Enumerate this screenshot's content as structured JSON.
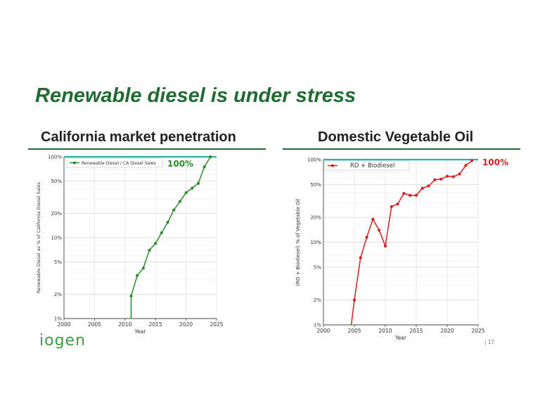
{
  "slide": {
    "title": "Renewable diesel is under stress",
    "left_heading": "California market penetration",
    "right_heading": "Domestic Vegetable Oil",
    "logo_text": "iogen",
    "page_number": "17"
  },
  "colors": {
    "brand_green": "#1f6b32",
    "series_green": "#2e8b2e",
    "series_red": "#d62020",
    "reference_teal": "#2ab0a6"
  },
  "chart_data": [
    {
      "type": "line",
      "yscale": "log",
      "x": [
        2011,
        2011,
        2012,
        2013,
        2014,
        2015,
        2016,
        2017,
        2018,
        2019,
        2020,
        2021,
        2022,
        2023,
        2024
      ],
      "series": [
        {
          "name": "Renewable Diesel / CA Diesel Sales",
          "values": [
            1,
            1.9,
            3.4,
            4.2,
            7,
            8.5,
            11.5,
            15.5,
            22,
            28,
            36,
            41,
            47,
            75,
            100
          ]
        }
      ],
      "reference_line": 100,
      "annotation": "100%",
      "title": "",
      "xlabel": "Year",
      "ylabel": "Renewable Diesel as % of California Diesel Sales",
      "xlim": [
        2000,
        2025
      ],
      "ylim": [
        1,
        100
      ],
      "xticks": [
        2000,
        2005,
        2010,
        2015,
        2020,
        2025
      ],
      "yticks": [
        1,
        2,
        5,
        10,
        20,
        50,
        100
      ],
      "ytick_labels": [
        "1%",
        "2%",
        "5%",
        "10%",
        "20%",
        "50%",
        "100%"
      ],
      "legend": "top-left"
    },
    {
      "type": "line",
      "yscale": "log",
      "x": [
        2004.5,
        2005,
        2006,
        2007,
        2008,
        2009,
        2010,
        2011,
        2012,
        2013,
        2014,
        2015,
        2016,
        2017,
        2018,
        2019,
        2020,
        2021,
        2022,
        2023,
        2024
      ],
      "series": [
        {
          "name": "RD + Biodiesel",
          "values": [
            1,
            2,
            6.5,
            11.5,
            19,
            14,
            9,
            27,
            29,
            39,
            37,
            37,
            45,
            48,
            57,
            58,
            63,
            62,
            67,
            85,
            97
          ]
        }
      ],
      "reference_line": 100,
      "annotation": "100%",
      "title": "",
      "xlabel": "Year",
      "ylabel": "(RD + Biodiesel) % of Vegetable Oil",
      "xlim": [
        2000,
        2025
      ],
      "ylim": [
        1,
        100
      ],
      "xticks": [
        2000,
        2005,
        2010,
        2015,
        2020,
        2025
      ],
      "yticks": [
        1,
        2,
        5,
        10,
        20,
        50,
        100
      ],
      "ytick_labels": [
        "1%",
        "2%",
        "5%",
        "10%",
        "20%",
        "50%",
        "100%"
      ],
      "legend": "top-left"
    }
  ]
}
